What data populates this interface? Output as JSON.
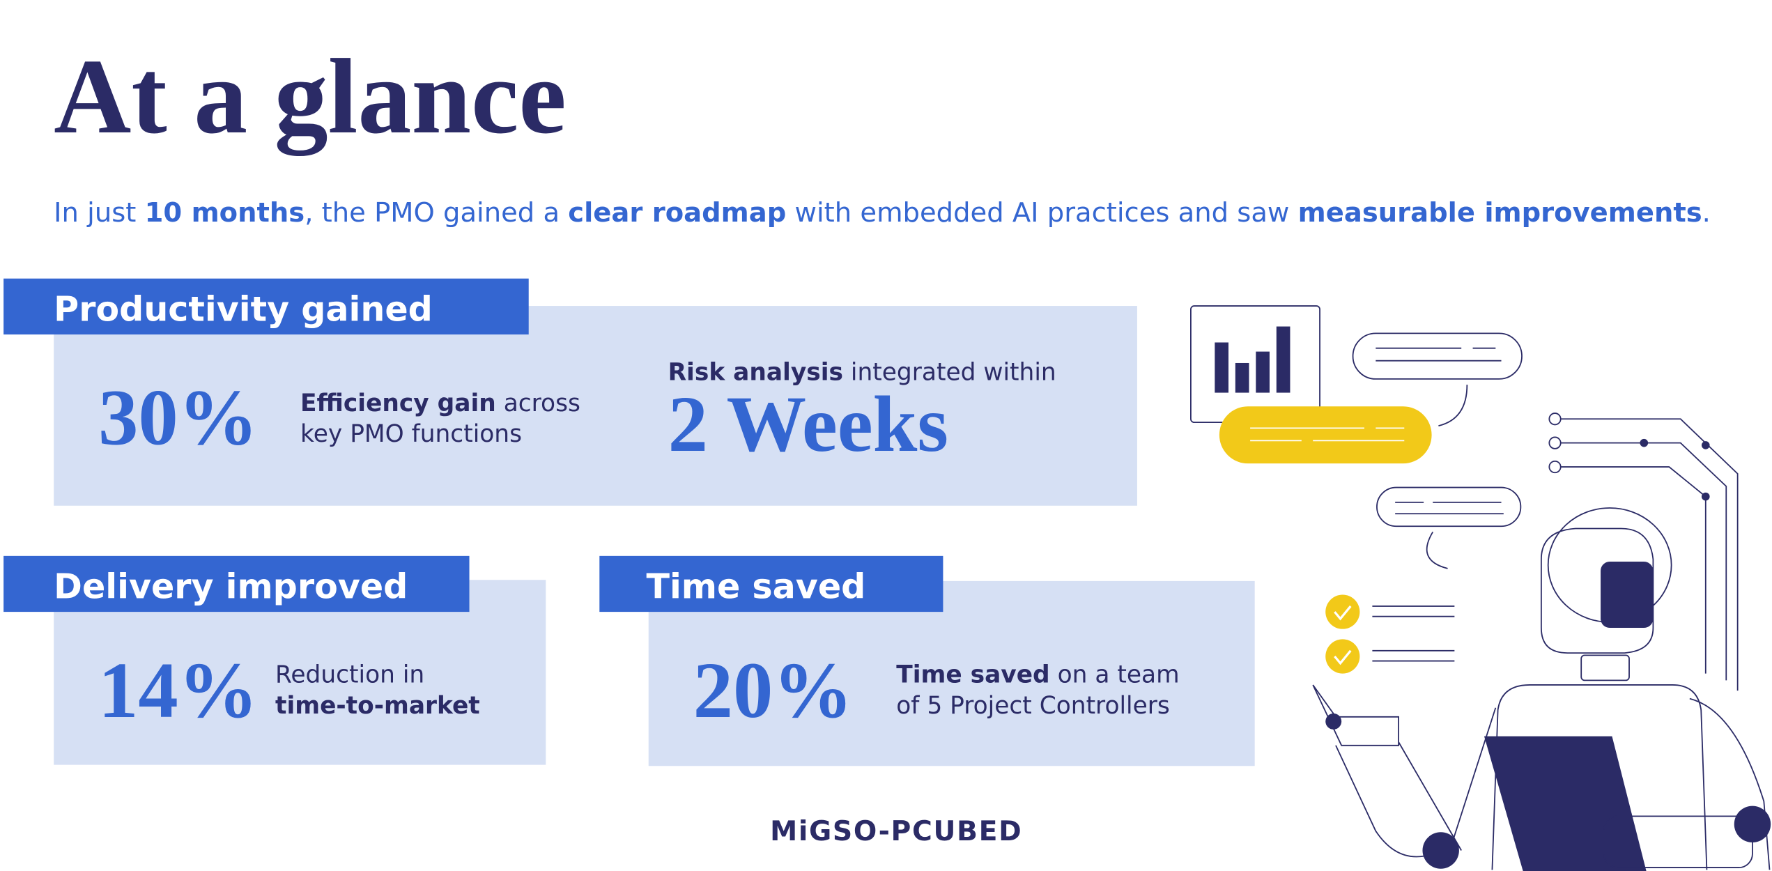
{
  "title": "At a glance",
  "subtitle": [
    {
      "text": "In just ",
      "bold": false
    },
    {
      "text": "10 months",
      "bold": true
    },
    {
      "text": ", the PMO gained a ",
      "bold": false
    },
    {
      "text": "clear roadmap",
      "bold": true
    },
    {
      "text": " with embedded AI practices and saw ",
      "bold": false
    },
    {
      "text": "measurable improvements",
      "bold": true
    },
    {
      "text": ".",
      "bold": false
    }
  ],
  "cards": [
    {
      "heading": "Productivity gained",
      "stats": [
        {
          "value": "30%",
          "description": [
            [
              {
                "text": "Efficiency gain",
                "bold": true
              },
              {
                "text": " across",
                "bold": false
              }
            ],
            [
              {
                "text": "key PMO functions",
                "bold": false
              }
            ]
          ]
        },
        {
          "lead": [
            [
              {
                "text": "Risk analysis",
                "bold": true
              },
              {
                "text": " integrated within",
                "bold": false
              }
            ]
          ],
          "value": "2 Weeks"
        }
      ]
    },
    {
      "heading": "Delivery improved",
      "stats": [
        {
          "value": "14%",
          "description": [
            [
              {
                "text": "Reduction in",
                "bold": false
              }
            ],
            [
              {
                "text": "time-to-market",
                "bold": true
              }
            ]
          ]
        }
      ]
    },
    {
      "heading": "Time saved",
      "stats": [
        {
          "value": "20%",
          "description": [
            [
              {
                "text": "Time saved",
                "bold": true
              },
              {
                "text": " on a team",
                "bold": false
              }
            ],
            [
              {
                "text": "of 5 Project Controllers",
                "bold": false
              }
            ]
          ]
        }
      ]
    }
  ],
  "logo": "MiGSO-PCUBED"
}
